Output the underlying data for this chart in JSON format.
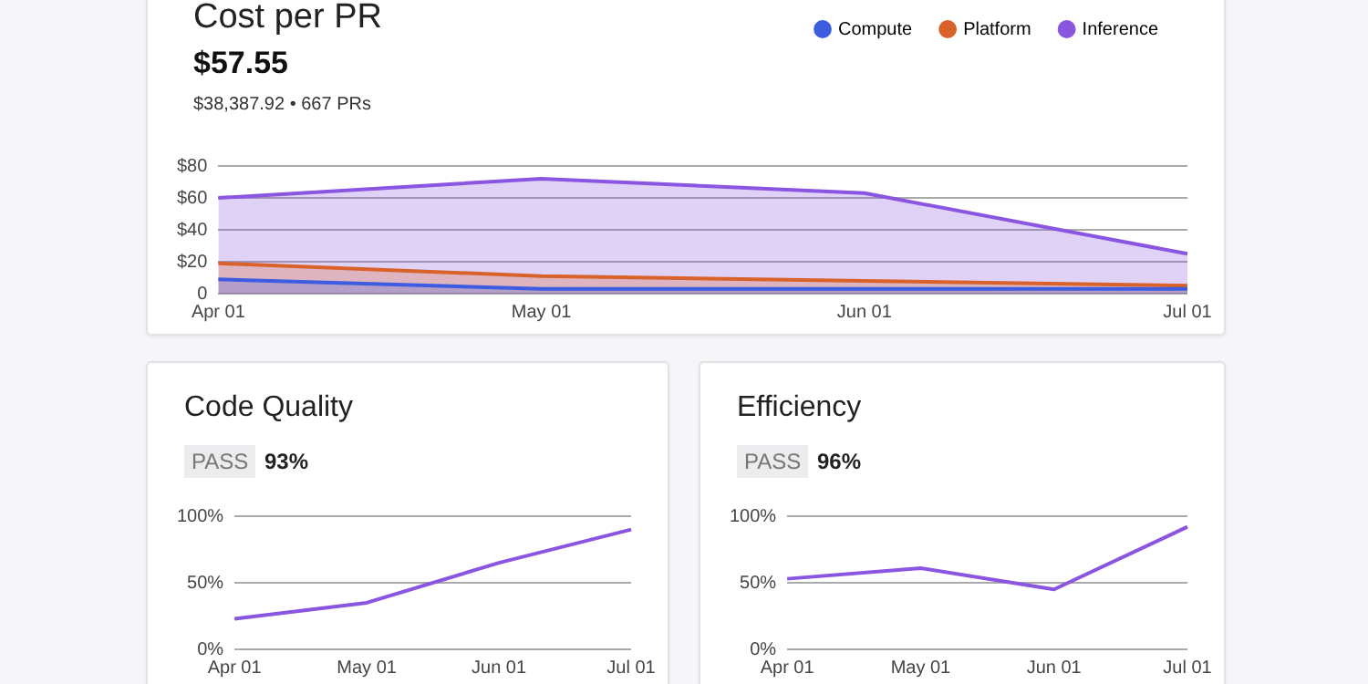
{
  "chart_data": [
    {
      "type": "area",
      "title": "Cost per PR",
      "subtitle": "$57.55",
      "annotations": [
        "$38,387.92 • 667 PRs"
      ],
      "categories": [
        "Apr 01",
        "May 01",
        "Jun 01",
        "Jul 01"
      ],
      "series": [
        {
          "name": "Compute",
          "color": "#3d5ce0",
          "values": [
            9,
            3,
            3,
            3
          ]
        },
        {
          "name": "Platform",
          "color": "#d9622b",
          "values": [
            19,
            11,
            8,
            5
          ]
        },
        {
          "name": "Inference",
          "color": "#8a55e0",
          "values": [
            60,
            72,
            63,
            25
          ]
        }
      ],
      "ylim": [
        0,
        80
      ],
      "yticks": [
        {
          "value": 0,
          "label": "0"
        },
        {
          "value": 20,
          "label": "$20"
        },
        {
          "value": 40,
          "label": "$40"
        },
        {
          "value": 60,
          "label": "$60"
        },
        {
          "value": 80,
          "label": "$80"
        }
      ],
      "grid": "y",
      "legend": "top right",
      "marker": "none"
    },
    {
      "type": "line",
      "title": "Code Quality",
      "annotations": [
        "PASS",
        "93%"
      ],
      "categories": [
        "Apr 01",
        "May 01",
        "Jun 01",
        "Jul 01"
      ],
      "values": [
        23,
        35,
        65,
        90
      ],
      "color": "#8a55e0",
      "ylim": [
        0,
        100
      ],
      "yticks": [
        {
          "value": 0,
          "label": "0%"
        },
        {
          "value": 50,
          "label": "50%"
        },
        {
          "value": 100,
          "label": "100%"
        }
      ],
      "grid": "y",
      "marker": "none"
    },
    {
      "type": "line",
      "title": "Efficiency",
      "annotations": [
        "PASS",
        "96%"
      ],
      "categories": [
        "Apr 01",
        "May 01",
        "Jun 01",
        "Jul 01"
      ],
      "values": [
        53,
        61,
        45,
        92
      ],
      "color": "#8a55e0",
      "ylim": [
        0,
        100
      ],
      "yticks": [
        {
          "value": 0,
          "label": "0%"
        },
        {
          "value": 50,
          "label": "50%"
        },
        {
          "value": 100,
          "label": "100%"
        }
      ],
      "grid": "y",
      "marker": "none"
    }
  ]
}
